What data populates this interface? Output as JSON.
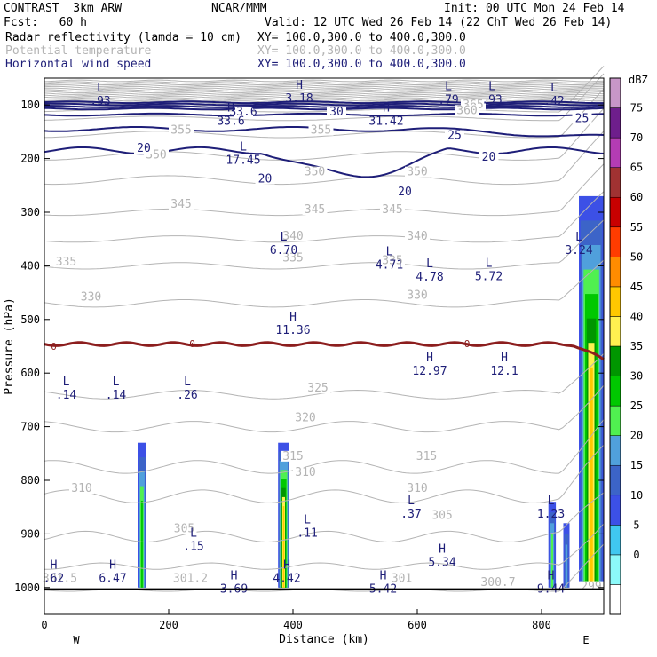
{
  "header": {
    "model": "CONTRAST  3km ARW",
    "org": "NCAR/MMM",
    "init": "Init: 00 UTC Mon 24 Feb 14",
    "fcst": "Fcst:   60 h",
    "valid": "Valid: 12 UTC Wed 26 Feb 14 (22 ChT Wed 26 Feb 14)",
    "fields": [
      {
        "name": "Radar reflectivity (lamda = 10 cm)",
        "xy": "XY= 100.0,300.0 to 400.0,300.0",
        "color": "#000000"
      },
      {
        "name": "Potential temperature",
        "xy": "XY= 100.0,300.0 to 400.0,300.0",
        "color": "#b4b4b4"
      },
      {
        "name": "Horizontal wind speed",
        "xy": "XY= 100.0,300.0 to 400.0,300.0",
        "color": "#1e1e78"
      }
    ]
  },
  "chart_data": {
    "type": "cross-section",
    "xlabel": "Distance (km)",
    "ylabel": "Pressure (hPa)",
    "xlim": [
      0,
      900
    ],
    "ylim": [
      1050,
      50
    ],
    "x_ticks": [
      0,
      200,
      400,
      600,
      800
    ],
    "y_ticks": [
      100,
      200,
      300,
      400,
      500,
      600,
      700,
      800,
      900,
      1000
    ],
    "x_end_labels": {
      "left": "W",
      "right": "E"
    },
    "colorbar": {
      "unit": "dBZ",
      "levels": [
        0,
        5,
        10,
        15,
        20,
        25,
        30,
        35,
        40,
        45,
        50,
        55,
        60,
        65,
        70,
        75
      ],
      "colors": [
        "#ffffff",
        "#8cfafa",
        "#40c8f0",
        "#3c50e6",
        "#3c64c8",
        "#50a0dc",
        "#50f050",
        "#00c800",
        "#009600",
        "#fff050",
        "#ffc800",
        "#ff8c00",
        "#ff3c00",
        "#c80000",
        "#a03232",
        "#b43cb4",
        "#6e1e8c",
        "#c896c8"
      ]
    },
    "theta_labels": [
      {
        "v": "365",
        "x": 690,
        "p": 105
      },
      {
        "v": "360",
        "x": 680,
        "p": 115
      },
      {
        "v": "355",
        "x": 220,
        "p": 152
      },
      {
        "v": "355",
        "x": 445,
        "p": 152
      },
      {
        "v": "350",
        "x": 180,
        "p": 198
      },
      {
        "v": "350",
        "x": 435,
        "p": 230
      },
      {
        "v": "350",
        "x": 600,
        "p": 230
      },
      {
        "v": "345",
        "x": 220,
        "p": 290
      },
      {
        "v": "345",
        "x": 435,
        "p": 300
      },
      {
        "v": "345",
        "x": 560,
        "p": 300
      },
      {
        "v": "340",
        "x": 400,
        "p": 350
      },
      {
        "v": "340",
        "x": 600,
        "p": 350
      },
      {
        "v": "335",
        "x": 35,
        "p": 398
      },
      {
        "v": "335",
        "x": 400,
        "p": 390
      },
      {
        "v": "335",
        "x": 560,
        "p": 395
      },
      {
        "v": "330",
        "x": 75,
        "p": 463
      },
      {
        "v": "330",
        "x": 600,
        "p": 460
      },
      {
        "v": "325",
        "x": 440,
        "p": 633
      },
      {
        "v": "320",
        "x": 420,
        "p": 688
      },
      {
        "v": "315",
        "x": 400,
        "p": 760
      },
      {
        "v": "315",
        "x": 615,
        "p": 760
      },
      {
        "v": "310",
        "x": 60,
        "p": 820
      },
      {
        "v": "310",
        "x": 420,
        "p": 790
      },
      {
        "v": "310",
        "x": 600,
        "p": 820
      },
      {
        "v": "305",
        "x": 225,
        "p": 895
      },
      {
        "v": "305",
        "x": 640,
        "p": 870
      },
      {
        "v": "301.5",
        "x": 25,
        "p": 988
      },
      {
        "v": "301.2",
        "x": 235,
        "p": 988
      },
      {
        "v": "301",
        "x": 575,
        "p": 988
      },
      {
        "v": "300.7",
        "x": 730,
        "p": 995
      },
      {
        "v": "299",
        "x": 880,
        "p": 1003
      }
    ],
    "wind_labels": [
      {
        "v": "33.6",
        "x": 320,
        "p": 118
      },
      {
        "v": "30",
        "x": 470,
        "p": 118
      },
      {
        "v": "25",
        "x": 660,
        "p": 162
      },
      {
        "v": "25",
        "x": 865,
        "p": 130
      },
      {
        "v": "20",
        "x": 160,
        "p": 186
      },
      {
        "v": "20",
        "x": 355,
        "p": 243
      },
      {
        "v": "20",
        "x": 580,
        "p": 267
      },
      {
        "v": "20",
        "x": 715,
        "p": 202
      }
    ],
    "extrema": [
      {
        "t": "L",
        "v": ".93",
        "x": 90,
        "p": 75
      },
      {
        "t": "H",
        "v": "3.18",
        "x": 410,
        "p": 70
      },
      {
        "t": "L",
        "v": ".79",
        "x": 650,
        "p": 72
      },
      {
        "t": "L",
        "v": ".93",
        "x": 720,
        "p": 72
      },
      {
        "t": "L",
        "v": ".42",
        "x": 820,
        "p": 75
      },
      {
        "t": "H",
        "v": "33.6",
        "x": 300,
        "p": 112
      },
      {
        "t": "H",
        "v": "31.42",
        "x": 550,
        "p": 112
      },
      {
        "t": "L",
        "v": "17.45",
        "x": 320,
        "p": 185
      },
      {
        "t": "L",
        "v": "6.70",
        "x": 385,
        "p": 353
      },
      {
        "t": "L",
        "v": "4.71",
        "x": 555,
        "p": 380
      },
      {
        "t": "L",
        "v": "4.78",
        "x": 620,
        "p": 403
      },
      {
        "t": "L",
        "v": "5.72",
        "x": 715,
        "p": 402
      },
      {
        "t": "L",
        "v": "3.24",
        "x": 860,
        "p": 353
      },
      {
        "t": "H",
        "v": "11.36",
        "x": 400,
        "p": 502
      },
      {
        "t": "H",
        "v": "12.97",
        "x": 620,
        "p": 578
      },
      {
        "t": "H",
        "v": "12.1",
        "x": 740,
        "p": 578
      },
      {
        "t": "L",
        "v": ".14",
        "x": 35,
        "p": 623
      },
      {
        "t": "L",
        "v": ".14",
        "x": 115,
        "p": 623
      },
      {
        "t": "L",
        "v": ".26",
        "x": 230,
        "p": 623
      },
      {
        "t": "L",
        "v": ".37",
        "x": 590,
        "p": 845
      },
      {
        "t": "L",
        "v": "1.23",
        "x": 815,
        "p": 845
      },
      {
        "t": "L",
        "v": ".11",
        "x": 423,
        "p": 880
      },
      {
        "t": "L",
        "v": ".15",
        "x": 240,
        "p": 905
      },
      {
        "t": "H",
        "v": "5.34",
        "x": 640,
        "p": 935
      },
      {
        "t": "H",
        "v": ".62",
        "x": 15,
        "p": 965
      },
      {
        "t": "H",
        "v": "6.47",
        "x": 110,
        "p": 965
      },
      {
        "t": "H",
        "v": "3.69",
        "x": 305,
        "p": 985
      },
      {
        "t": "H",
        "v": "4.42",
        "x": 390,
        "p": 965
      },
      {
        "t": "H",
        "v": "5.42",
        "x": 545,
        "p": 985
      },
      {
        "t": "H",
        "v": "9.44",
        "x": 815,
        "p": 985
      }
    ],
    "freezing_line_labels": [
      {
        "v": "0",
        "x": 15,
        "p": 550
      },
      {
        "v": "0",
        "x": 238,
        "p": 545
      },
      {
        "v": "0",
        "x": 680,
        "p": 545
      }
    ],
    "reflectivity_cores": [
      {
        "x": 157,
        "top": 730,
        "halfwidth": 7,
        "max_dbz": 25
      },
      {
        "x": 385,
        "top": 730,
        "halfwidth": 9,
        "max_dbz": 40
      },
      {
        "x": 817,
        "top": 840,
        "halfwidth": 6,
        "max_dbz": 20
      },
      {
        "x": 840,
        "top": 880,
        "halfwidth": 5,
        "max_dbz": 15
      },
      {
        "x": 880,
        "top": 270,
        "halfwidth": 20,
        "max_dbz": 40
      }
    ]
  }
}
